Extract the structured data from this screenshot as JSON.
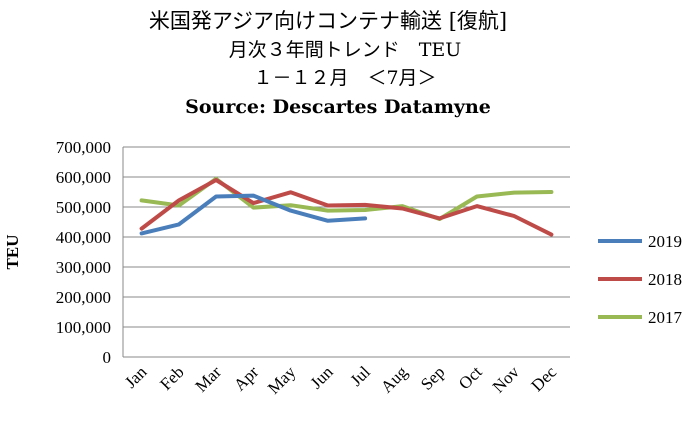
{
  "chart_data": {
    "type": "line",
    "title_lines": [
      "米国発アジア向けコンテナ輸送 [復航]",
      "月次３年間トレンド　TEU",
      "１－１２月　＜7月＞",
      "Source: Descartes Datamyne"
    ],
    "ylabel": "TEU",
    "xlabel": "",
    "categories": [
      "Jan",
      "Feb",
      "Mar",
      "Apr",
      "May",
      "Jun",
      "Jul",
      "Aug",
      "Sep",
      "Oct",
      "Nov",
      "Dec"
    ],
    "ylim": [
      0,
      700000
    ],
    "yticks": [
      0,
      100000,
      200000,
      300000,
      400000,
      500000,
      600000,
      700000
    ],
    "ytick_labels": [
      "0",
      "100,000",
      "200,000",
      "300,000",
      "400,000",
      "500,000",
      "600,000",
      "700,000"
    ],
    "grid": true,
    "legend_position": "right",
    "series": [
      {
        "name": "2019",
        "color": "#4a7ebb",
        "values": [
          412000,
          442000,
          535000,
          538000,
          488000,
          454000,
          462000,
          null,
          null,
          null,
          null,
          null
        ]
      },
      {
        "name": "2018",
        "color": "#be4b48",
        "values": [
          428000,
          522000,
          590000,
          513000,
          549000,
          505000,
          507000,
          495000,
          462000,
          503000,
          470000,
          408000
        ]
      },
      {
        "name": "2017",
        "color": "#98b954",
        "values": [
          522000,
          505000,
          594000,
          498000,
          506000,
          488000,
          490000,
          503000,
          460000,
          535000,
          548000,
          550000
        ]
      }
    ]
  }
}
